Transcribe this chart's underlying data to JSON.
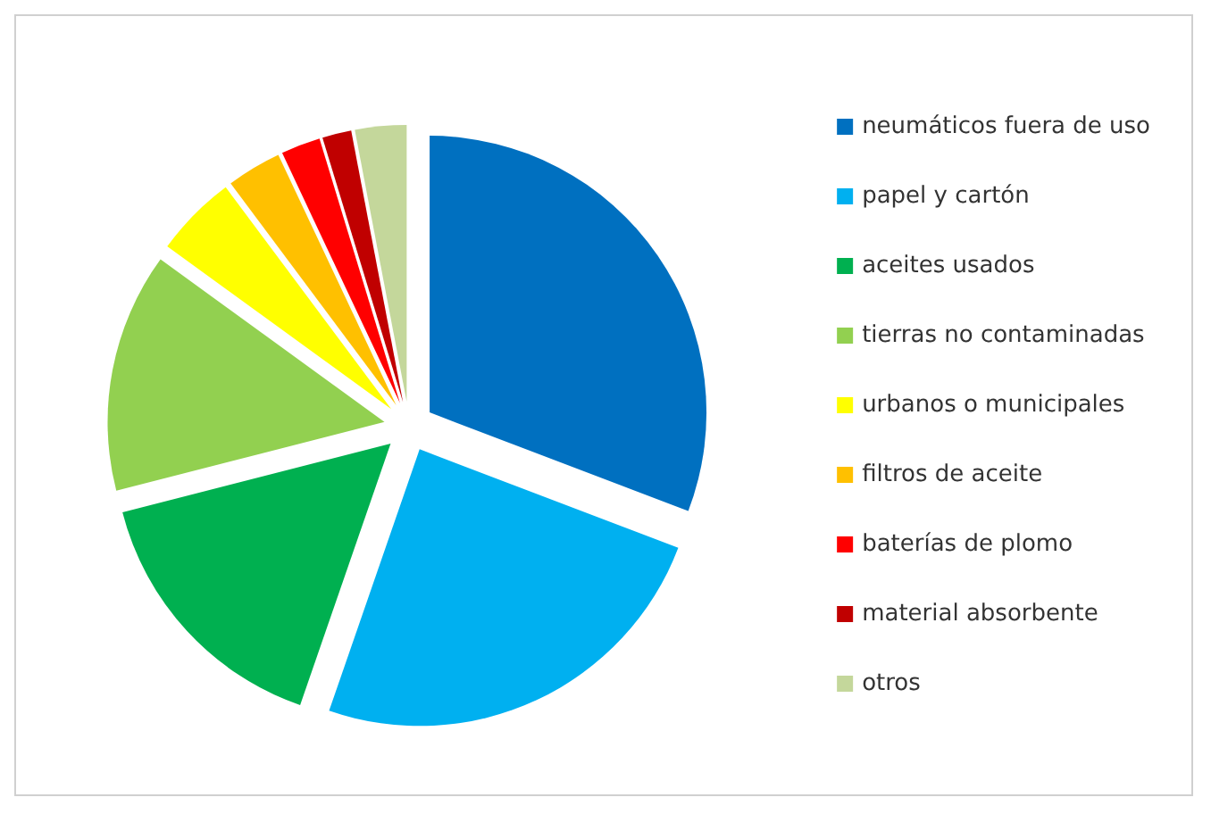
{
  "chart_data": {
    "type": "pie",
    "categories": [
      "neumáticos fuera de uso",
      "papel y cartón",
      "aceites usados",
      "tierras no contaminadas",
      "urbanos o municipales",
      "filtros de aceite",
      "baterías de plomo",
      "material absorbente",
      "otros"
    ],
    "values": [
      30.8,
      24.5,
      15.7,
      14,
      4.8,
      3.2,
      2.3,
      1.7,
      3
    ],
    "colors": [
      "#0070c0",
      "#00b0f0",
      "#00b050",
      "#92d050",
      "#ffff00",
      "#ffc000",
      "#ff0000",
      "#c00000",
      "#c4d79b"
    ],
    "legend": "right"
  }
}
